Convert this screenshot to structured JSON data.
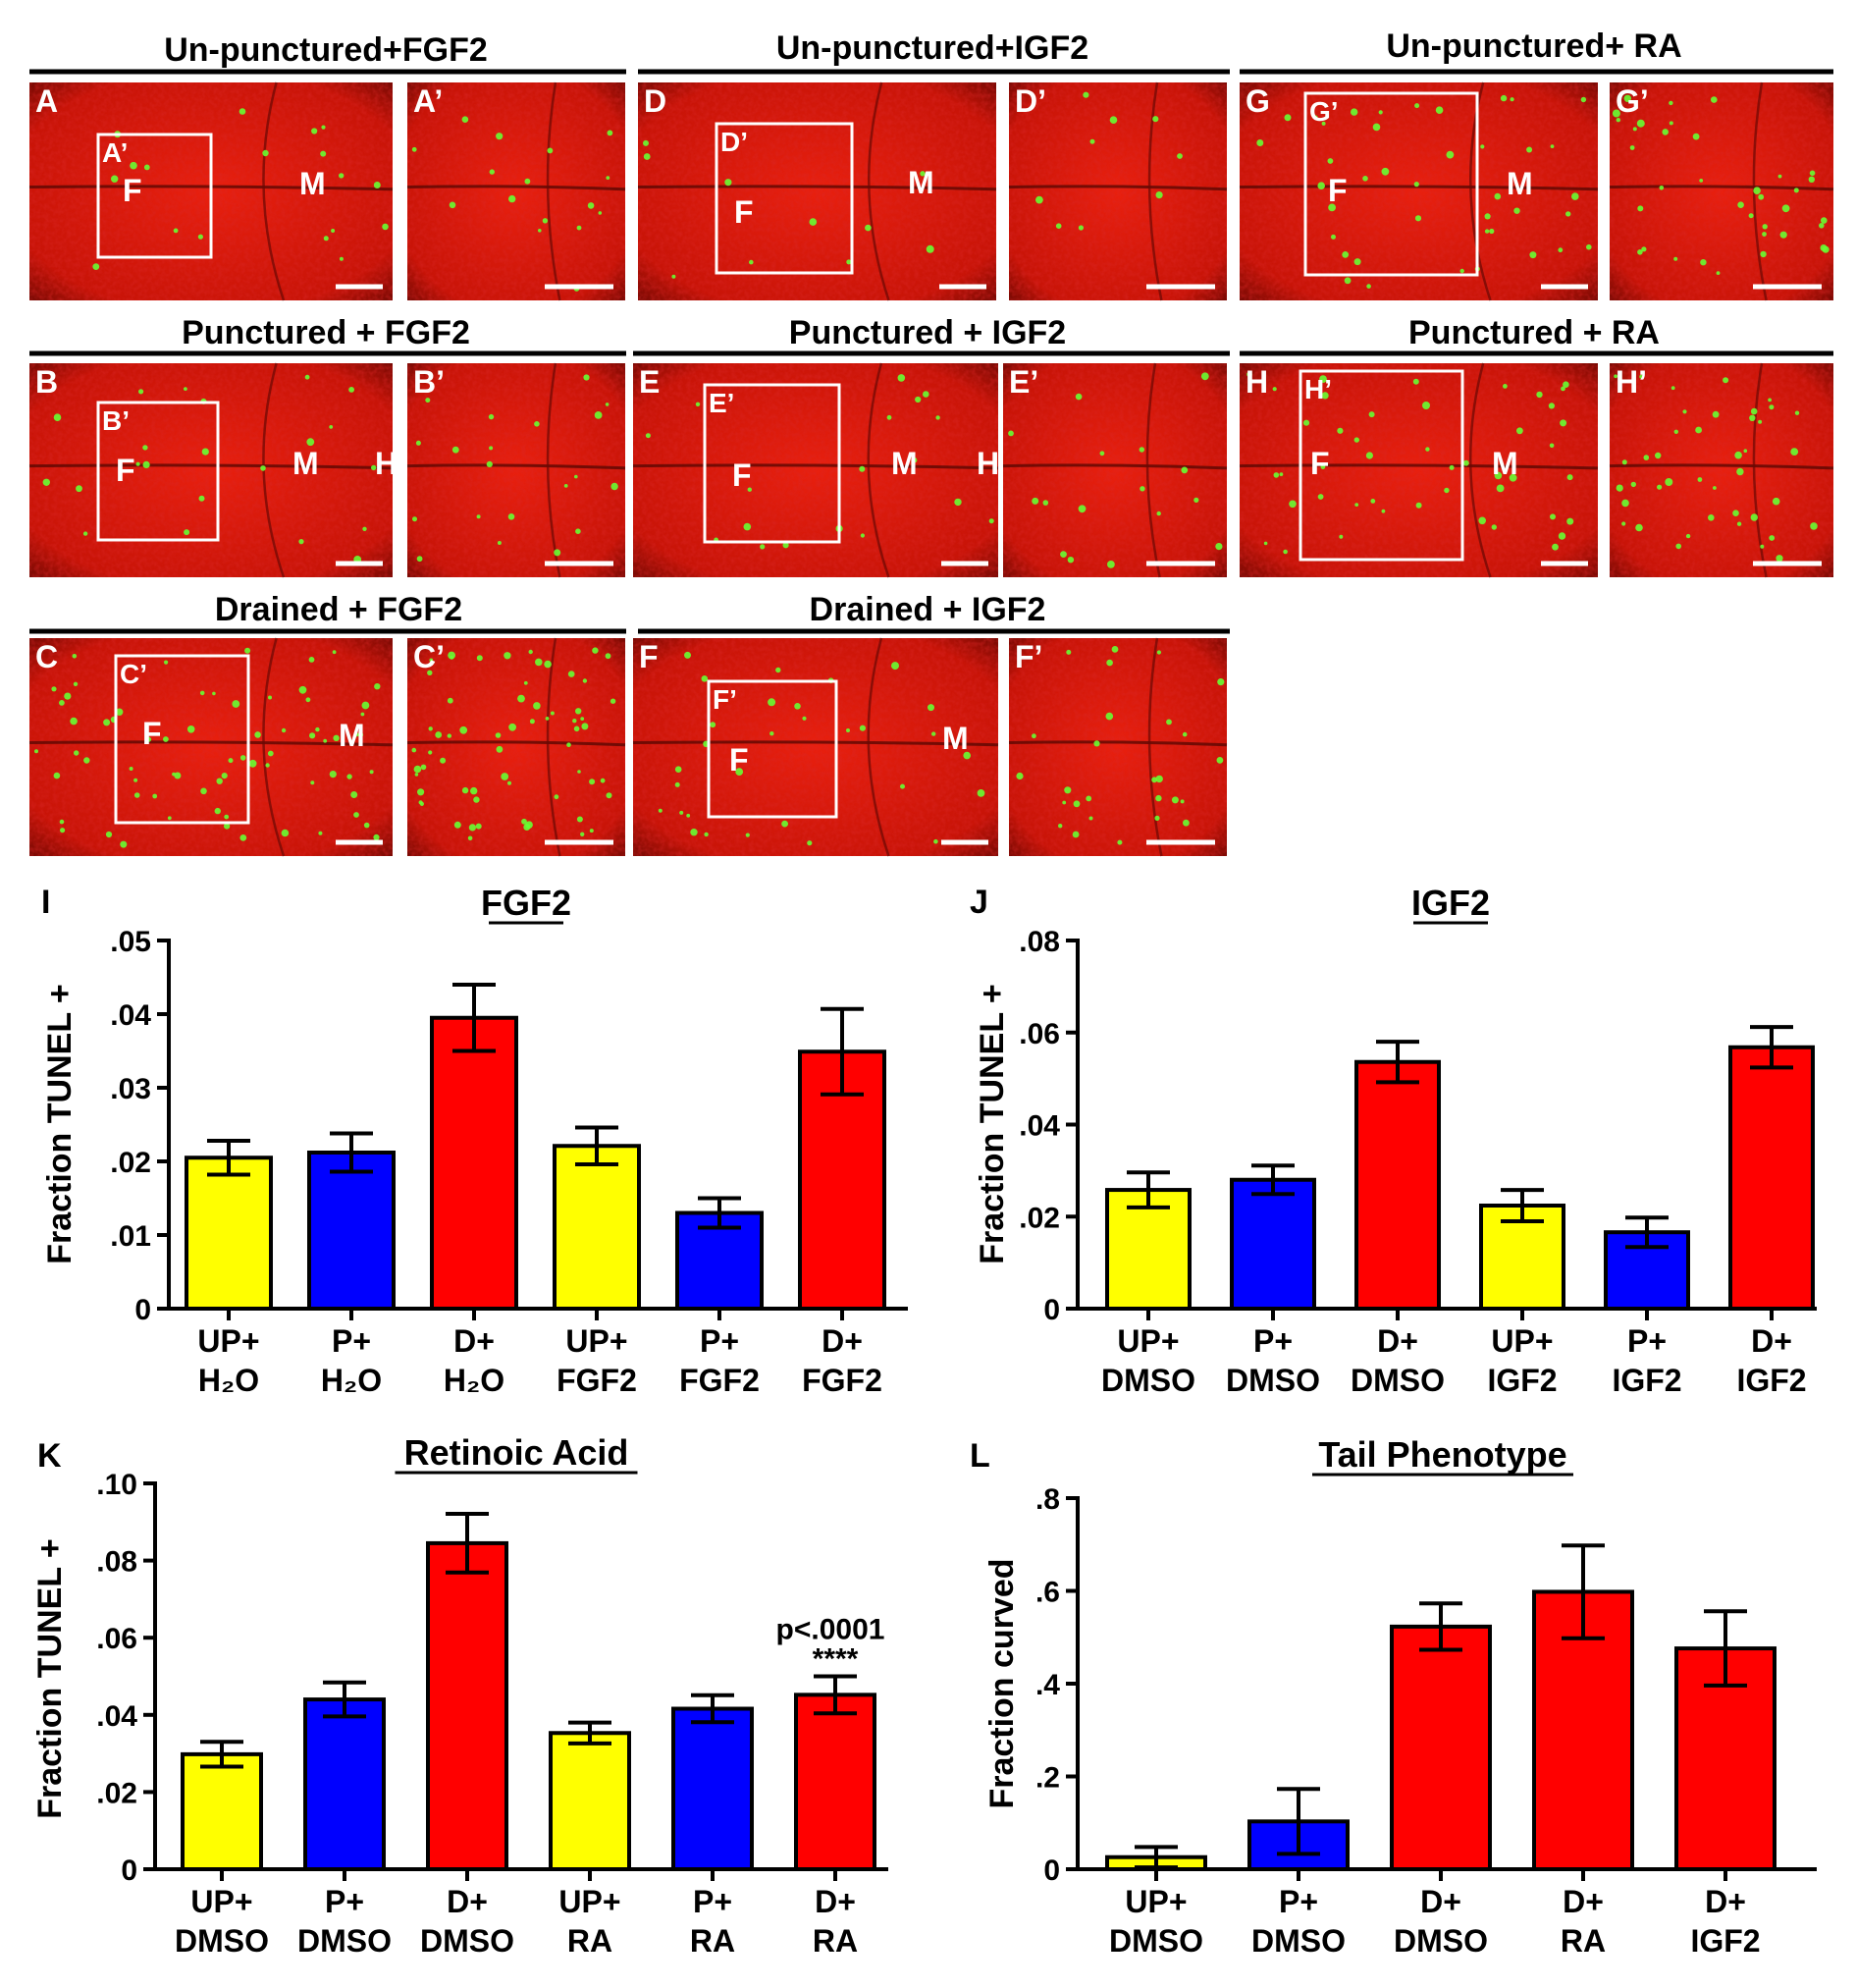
{
  "figure": {
    "micro_headers": [
      "Un-punctured+FGF2",
      "Un-punctured+IGF2",
      "Un-punctured+ RA",
      "Punctured + FGF2",
      "Punctured + IGF2",
      "Punctured + RA",
      "Drained + FGF2",
      "Drained + IGF2"
    ],
    "panels": {
      "A": {
        "label": "A",
        "inset_label": "A’",
        "zoom_label": "A’",
        "region_labels": [
          "F",
          "M"
        ]
      },
      "D": {
        "label": "D",
        "inset_label": "D’",
        "zoom_label": "D’",
        "region_labels": [
          "F",
          "M"
        ]
      },
      "G": {
        "label": "G",
        "inset_label": "G’",
        "zoom_label": "G’",
        "region_labels": [
          "F",
          "M"
        ]
      },
      "B": {
        "label": "B",
        "inset_label": "B’",
        "zoom_label": "B’",
        "region_labels": [
          "F",
          "M",
          "H"
        ]
      },
      "E": {
        "label": "E",
        "inset_label": "E’",
        "zoom_label": "E’",
        "region_labels": [
          "F",
          "M",
          "H"
        ]
      },
      "H": {
        "label": "H",
        "inset_label": "H’",
        "zoom_label": "H’",
        "region_labels": [
          "F",
          "M"
        ]
      },
      "C": {
        "label": "C",
        "inset_label": "C’",
        "zoom_label": "C’",
        "region_labels": [
          "F",
          "M"
        ]
      },
      "F": {
        "label": "F",
        "inset_label": "F’",
        "zoom_label": "F’",
        "region_labels": [
          "F",
          "M"
        ]
      }
    },
    "colors": {
      "tissue": "#e01a10",
      "tunel": "#66ff33",
      "yellow_bar": "#ffff00",
      "blue_bar": "#0000ff",
      "red_bar": "#ff0000"
    }
  },
  "chart_data": [
    {
      "panel": "I",
      "type": "bar",
      "title": "FGF2",
      "ylabel": "Fraction TUNEL +",
      "ylim": [
        0,
        0.05
      ],
      "yticks": [
        "0",
        ".01",
        ".02",
        ".03",
        ".04",
        ".05"
      ],
      "categories": [
        [
          "UP+",
          "H₂O"
        ],
        [
          "P+",
          "H₂O"
        ],
        [
          "D+",
          "H₂O"
        ],
        [
          "UP+",
          "FGF2"
        ],
        [
          "P+",
          "FGF2"
        ],
        [
          "D+",
          "FGF2"
        ]
      ],
      "values": [
        0.0205,
        0.0212,
        0.0395,
        0.0221,
        0.013,
        0.0349
      ],
      "errors": [
        0.0023,
        0.0026,
        0.0045,
        0.0025,
        0.002,
        0.0058
      ],
      "colors": [
        "#ffff00",
        "#0000ff",
        "#ff0000",
        "#ffff00",
        "#0000ff",
        "#ff0000"
      ]
    },
    {
      "panel": "J",
      "type": "bar",
      "title": "IGF2",
      "ylabel": "Fraction TUNEL +",
      "ylim": [
        0,
        0.08
      ],
      "yticks": [
        "0",
        ".02",
        ".04",
        ".06",
        ".08"
      ],
      "categories": [
        [
          "UP+",
          "DMSO"
        ],
        [
          "P+",
          "DMSO"
        ],
        [
          "D+",
          "DMSO"
        ],
        [
          "UP+",
          "IGF2"
        ],
        [
          "P+",
          "IGF2"
        ],
        [
          "D+",
          "IGF2"
        ]
      ],
      "values": [
        0.0258,
        0.028,
        0.0536,
        0.0224,
        0.0166,
        0.0568
      ],
      "errors": [
        0.0038,
        0.0031,
        0.0044,
        0.0034,
        0.0032,
        0.0044
      ],
      "colors": [
        "#ffff00",
        "#0000ff",
        "#ff0000",
        "#ffff00",
        "#0000ff",
        "#ff0000"
      ]
    },
    {
      "panel": "K",
      "type": "bar",
      "title": "Retinoic Acid",
      "ylabel": "Fraction TUNEL +",
      "ylim": [
        0,
        0.1
      ],
      "yticks": [
        "0",
        ".02",
        ".04",
        ".06",
        ".08",
        ".10"
      ],
      "categories": [
        [
          "UP+",
          "DMSO"
        ],
        [
          "P+",
          "DMSO"
        ],
        [
          "D+",
          "DMSO"
        ],
        [
          "UP+",
          "RA"
        ],
        [
          "P+",
          "RA"
        ],
        [
          "D+",
          "RA"
        ]
      ],
      "values": [
        0.0298,
        0.044,
        0.0845,
        0.0353,
        0.0416,
        0.0452
      ],
      "errors": [
        0.0032,
        0.0044,
        0.0076,
        0.0027,
        0.0035,
        0.0048
      ],
      "colors": [
        "#ffff00",
        "#0000ff",
        "#ff0000",
        "#ffff00",
        "#0000ff",
        "#ff0000"
      ],
      "annotation": {
        "bar": 5,
        "stars": "****",
        "pvalue": "p<.0001"
      }
    },
    {
      "panel": "L",
      "type": "bar",
      "title": "Tail Phenotype",
      "ylabel": "Fraction curved",
      "ylim": [
        0,
        0.8
      ],
      "yticks": [
        "0",
        ".2",
        ".4",
        ".6",
        ".8"
      ],
      "categories": [
        [
          "UP+",
          "DMSO"
        ],
        [
          "P+",
          "DMSO"
        ],
        [
          "D+",
          "DMSO"
        ],
        [
          "D+",
          "RA"
        ],
        [
          "D+",
          "IGF2"
        ]
      ],
      "values": [
        0.026,
        0.103,
        0.523,
        0.598,
        0.476
      ],
      "errors": [
        0.022,
        0.07,
        0.05,
        0.1,
        0.08
      ],
      "colors": [
        "#ffff00",
        "#0000ff",
        "#ff0000",
        "#ff0000",
        "#ff0000"
      ]
    }
  ]
}
